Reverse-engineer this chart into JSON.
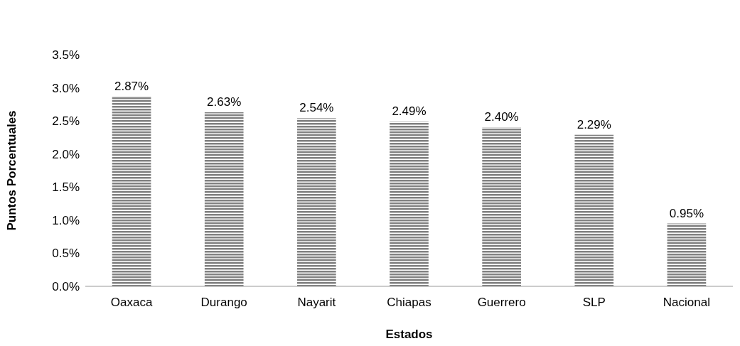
{
  "chart_data": {
    "type": "bar",
    "xlabel": "Estados",
    "ylabel": "Puntos Porcentuales",
    "categories": [
      "Oaxaca",
      "Durango",
      "Nayarit",
      "Chiapas",
      "Guerrero",
      "SLP",
      "Nacional"
    ],
    "values": [
      2.87,
      2.63,
      2.54,
      2.49,
      2.4,
      2.29,
      0.95
    ],
    "value_labels": [
      "2.87%",
      "2.63%",
      "2.54%",
      "2.49%",
      "2.40%",
      "2.29%",
      "0.95%"
    ],
    "color": "#808080",
    "ylim": [
      0,
      3.5
    ],
    "yticks": [
      {
        "value": 0,
        "label": "0.0%"
      },
      {
        "value": 0.5,
        "label": "0.5%"
      },
      {
        "value": 1,
        "label": "1.0%"
      },
      {
        "value": 1.5,
        "label": "1.5%"
      },
      {
        "value": 2,
        "label": "2.0%"
      },
      {
        "value": 2.5,
        "label": "2.5%"
      },
      {
        "value": 3,
        "label": "3.0%"
      },
      {
        "value": 3.5,
        "label": "3.5%"
      }
    ],
    "grid": false
  }
}
